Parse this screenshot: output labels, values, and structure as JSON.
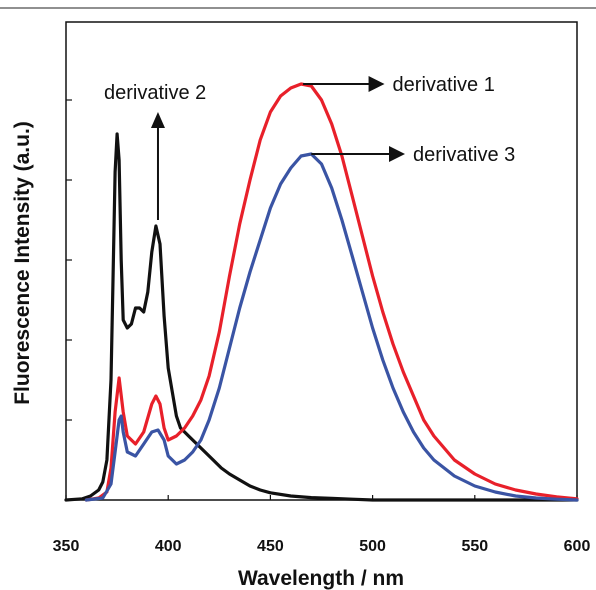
{
  "chart_data": {
    "type": "line",
    "title": "",
    "xlabel": "Wavelength / nm",
    "ylabel": "Fluorescence Intensity (a.u.)",
    "xlim": [
      350,
      600
    ],
    "ylim": [
      0,
      1
    ],
    "x_ticks": [
      350,
      400,
      450,
      500,
      550,
      600
    ],
    "y_tick_values": [
      0.2,
      0.4,
      0.6,
      0.8,
      1.0
    ],
    "y_tick_labels_shown": false,
    "grid": false,
    "legend": "none",
    "series": [
      {
        "color": "#111111",
        "x": [
          350,
          358,
          362,
          366,
          368,
          370,
          372,
          373,
          374,
          375,
          376,
          377,
          378,
          380,
          382,
          384,
          386,
          388,
          390,
          392,
          394,
          396,
          398,
          400,
          402,
          404,
          406,
          408,
          410,
          414,
          418,
          422,
          426,
          430,
          435,
          440,
          445,
          450,
          460,
          470,
          480,
          490,
          500,
          520,
          540,
          560,
          580,
          600
        ],
        "y": [
          0.0,
          0.003,
          0.01,
          0.025,
          0.045,
          0.1,
          0.3,
          0.55,
          0.82,
          0.915,
          0.85,
          0.6,
          0.45,
          0.43,
          0.44,
          0.48,
          0.48,
          0.47,
          0.52,
          0.62,
          0.685,
          0.64,
          0.46,
          0.33,
          0.27,
          0.21,
          0.18,
          0.17,
          0.16,
          0.14,
          0.12,
          0.1,
          0.08,
          0.065,
          0.05,
          0.035,
          0.025,
          0.018,
          0.01,
          0.006,
          0.004,
          0.002,
          0.0,
          0.0,
          0.0,
          0.0,
          0.0,
          0.0
        ]
      },
      {
        "color": "#e8202a",
        "x": [
          360,
          366,
          370,
          372,
          374,
          376,
          378,
          380,
          384,
          388,
          392,
          394,
          396,
          398,
          400,
          404,
          408,
          412,
          416,
          420,
          425,
          430,
          435,
          440,
          445,
          450,
          455,
          460,
          465,
          470,
          475,
          480,
          485,
          490,
          495,
          500,
          505,
          510,
          515,
          520,
          525,
          530,
          540,
          550,
          560,
          570,
          580,
          590,
          600
        ],
        "y": [
          0.0,
          0.005,
          0.02,
          0.08,
          0.22,
          0.305,
          0.22,
          0.16,
          0.14,
          0.17,
          0.24,
          0.26,
          0.24,
          0.18,
          0.15,
          0.16,
          0.18,
          0.21,
          0.25,
          0.31,
          0.42,
          0.56,
          0.69,
          0.8,
          0.9,
          0.97,
          1.01,
          1.03,
          1.04,
          1.035,
          1.0,
          0.94,
          0.86,
          0.76,
          0.66,
          0.56,
          0.47,
          0.39,
          0.32,
          0.26,
          0.2,
          0.16,
          0.1,
          0.065,
          0.04,
          0.025,
          0.015,
          0.008,
          0.003
        ]
      },
      {
        "color": "#3a54a4",
        "x": [
          360,
          368,
          372,
          374,
          376,
          377,
          378,
          380,
          384,
          388,
          392,
          395,
          398,
          400,
          404,
          408,
          412,
          416,
          420,
          425,
          430,
          435,
          440,
          445,
          450,
          455,
          460,
          465,
          470,
          475,
          480,
          485,
          490,
          495,
          500,
          505,
          510,
          515,
          520,
          525,
          530,
          540,
          550,
          560,
          570,
          580,
          590,
          600
        ],
        "y": [
          0.0,
          0.005,
          0.04,
          0.12,
          0.2,
          0.21,
          0.17,
          0.12,
          0.11,
          0.14,
          0.17,
          0.175,
          0.15,
          0.11,
          0.09,
          0.1,
          0.12,
          0.15,
          0.2,
          0.28,
          0.38,
          0.48,
          0.57,
          0.65,
          0.73,
          0.79,
          0.83,
          0.86,
          0.865,
          0.84,
          0.78,
          0.7,
          0.61,
          0.52,
          0.43,
          0.35,
          0.28,
          0.22,
          0.17,
          0.13,
          0.1,
          0.06,
          0.035,
          0.02,
          0.01,
          0.005,
          0.002,
          0.0
        ]
      }
    ],
    "annotations": [
      {
        "text": "derivative 2",
        "arrow": "up",
        "arrow_from": [
          395,
          0.7
        ],
        "arrow_to": [
          395,
          0.96
        ]
      },
      {
        "text": "derivative 1",
        "arrow": "right",
        "arrow_from": [
          466,
          1.04
        ],
        "arrow_to": [
          499,
          1.04
        ]
      },
      {
        "text": "derivative 3",
        "arrow": "right",
        "arrow_from": [
          470,
          0.865
        ],
        "arrow_to": [
          509,
          0.865
        ]
      }
    ]
  }
}
